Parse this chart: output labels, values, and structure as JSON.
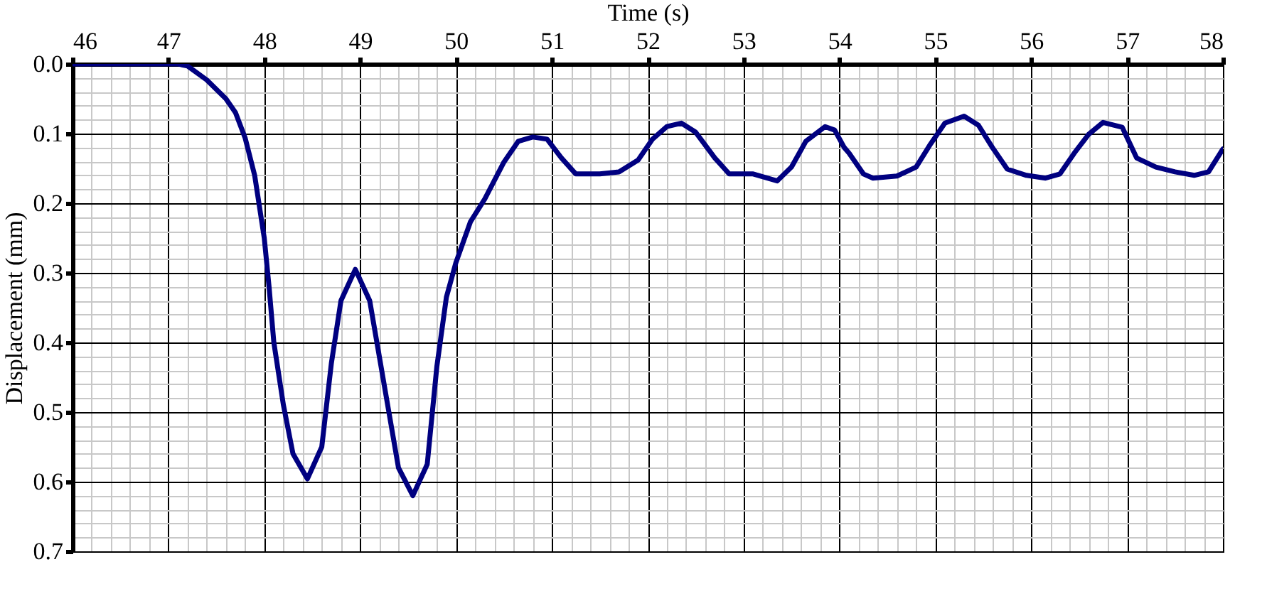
{
  "chart_data": {
    "type": "line",
    "xlabel": "Time (s)",
    "ylabel": "Displacement (mm)",
    "grid": true,
    "marker": "none",
    "line_style": "solid",
    "xlim": [
      46,
      58
    ],
    "ylim": [
      0.7,
      0.0
    ],
    "xticks": [
      46,
      {
        "value": 46.2,
        "label": null
      },
      {
        "value": 46.4,
        "label": null
      },
      {
        "value": 46.6,
        "label": null
      },
      {
        "value": 46.8,
        "label": null
      },
      47,
      {
        "value": 47.2,
        "label": null
      },
      {
        "value": 47.4,
        "label": null
      },
      {
        "value": 47.6,
        "label": null
      },
      {
        "value": 47.8,
        "label": null
      },
      48,
      {
        "value": 48.2,
        "label": null
      },
      {
        "value": 48.4,
        "label": null
      },
      {
        "value": 48.6,
        "label": null
      },
      {
        "value": 48.8,
        "label": null
      },
      49,
      {
        "value": 49.2,
        "label": null
      },
      {
        "value": 49.4,
        "label": null
      },
      {
        "value": 49.6,
        "label": null
      },
      {
        "value": 49.8,
        "label": null
      },
      50,
      {
        "value": 50.2,
        "label": null
      },
      {
        "value": 50.4,
        "label": null
      },
      {
        "value": 50.6,
        "label": null
      },
      {
        "value": 50.8,
        "label": null
      },
      51,
      {
        "value": 51.2,
        "label": null
      },
      {
        "value": 51.4,
        "label": null
      },
      {
        "value": 51.6,
        "label": null
      },
      {
        "value": 51.8,
        "label": null
      },
      52,
      {
        "value": 52.2,
        "label": null
      },
      {
        "value": 52.4,
        "label": null
      },
      {
        "value": 52.6,
        "label": null
      },
      {
        "value": 52.8,
        "label": null
      },
      53,
      {
        "value": 53.2,
        "label": null
      },
      {
        "value": 53.4,
        "label": null
      },
      {
        "value": 53.6,
        "label": null
      },
      {
        "value": 53.8,
        "label": null
      },
      54,
      {
        "value": 54.2,
        "label": null
      },
      {
        "value": 54.4,
        "label": null
      },
      {
        "value": 54.6,
        "label": null
      },
      {
        "value": 54.8,
        "label": null
      },
      55,
      {
        "value": 55.2,
        "label": null
      },
      {
        "value": 55.4,
        "label": null
      },
      {
        "value": 55.6,
        "label": null
      },
      {
        "value": 55.8,
        "label": null
      },
      56,
      {
        "value": 56.2,
        "label": null
      },
      {
        "value": 56.4,
        "label": null
      },
      {
        "value": 56.6,
        "label": null
      },
      {
        "value": 56.8,
        "label": null
      },
      57,
      {
        "value": 57.2,
        "label": null
      },
      {
        "value": 57.4,
        "label": null
      },
      {
        "value": 57.6,
        "label": null
      },
      {
        "value": 57.8,
        "label": null
      },
      58
    ],
    "yticks": [
      {
        "value": 0,
        "label": "0.0"
      },
      {
        "value": 0.02,
        "label": null
      },
      {
        "value": 0.04,
        "label": null
      },
      {
        "value": 0.06,
        "label": null
      },
      {
        "value": 0.08,
        "label": null
      },
      0.1,
      {
        "value": 0.12,
        "label": null
      },
      {
        "value": 0.14,
        "label": null
      },
      {
        "value": 0.16,
        "label": null
      },
      {
        "value": 0.18,
        "label": null
      },
      0.2,
      {
        "value": 0.22,
        "label": null
      },
      {
        "value": 0.24,
        "label": null
      },
      {
        "value": 0.26,
        "label": null
      },
      {
        "value": 0.28,
        "label": null
      },
      0.3,
      {
        "value": 0.32,
        "label": null
      },
      {
        "value": 0.34,
        "label": null
      },
      {
        "value": 0.36,
        "label": null
      },
      {
        "value": 0.38,
        "label": null
      },
      0.4,
      {
        "value": 0.42,
        "label": null
      },
      {
        "value": 0.44,
        "label": null
      },
      {
        "value": 0.46,
        "label": null
      },
      {
        "value": 0.48,
        "label": null
      },
      0.5,
      {
        "value": 0.52,
        "label": null
      },
      {
        "value": 0.54,
        "label": null
      },
      {
        "value": 0.56,
        "label": null
      },
      {
        "value": 0.58,
        "label": null
      },
      0.6,
      {
        "value": 0.62,
        "label": null
      },
      {
        "value": 0.64,
        "label": null
      },
      {
        "value": 0.66,
        "label": null
      },
      {
        "value": 0.68,
        "label": null
      },
      0.7
    ],
    "series": [
      {
        "color": "#000080",
        "x": [
          46,
          46.5,
          47,
          47.1,
          47.2,
          47.4,
          47.6,
          47.7,
          47.8,
          47.9,
          48,
          48.05,
          48.1,
          48.2,
          48.3,
          48.45,
          48.6,
          48.7,
          48.8,
          48.95,
          49.1,
          49.2,
          49.3,
          49.4,
          49.55,
          49.7,
          49.8,
          49.9,
          50,
          50.15,
          50.3,
          50.5,
          50.65,
          50.8,
          50.95,
          51.1,
          51.25,
          51.5,
          51.7,
          51.9,
          52.05,
          52.2,
          52.35,
          52.5,
          52.7,
          52.85,
          53.1,
          53.35,
          53.5,
          53.65,
          53.85,
          53.95,
          54.05,
          54.1,
          54.25,
          54.35,
          54.6,
          54.8,
          54.95,
          55.1,
          55.3,
          55.45,
          55.6,
          55.75,
          55.95,
          56.15,
          56.3,
          56.45,
          56.6,
          56.75,
          56.95,
          57.1,
          57.3,
          57.5,
          57.7,
          57.85,
          58
        ],
        "values": [
          0,
          0,
          0,
          0,
          0.003,
          0.023,
          0.05,
          0.07,
          0.106,
          0.16,
          0.25,
          0.32,
          0.4,
          0.49,
          0.56,
          0.596,
          0.55,
          0.43,
          0.34,
          0.295,
          0.34,
          0.42,
          0.5,
          0.58,
          0.62,
          0.575,
          0.435,
          0.335,
          0.285,
          0.227,
          0.194,
          0.141,
          0.111,
          0.105,
          0.108,
          0.135,
          0.158,
          0.158,
          0.155,
          0.138,
          0.108,
          0.09,
          0.085,
          0.098,
          0.135,
          0.158,
          0.158,
          0.168,
          0.148,
          0.111,
          0.09,
          0.095,
          0.12,
          0.128,
          0.158,
          0.164,
          0.161,
          0.148,
          0.115,
          0.085,
          0.075,
          0.088,
          0.121,
          0.151,
          0.16,
          0.164,
          0.158,
          0.128,
          0.101,
          0.084,
          0.091,
          0.135,
          0.148,
          0.155,
          0.16,
          0.155,
          0.122
        ]
      }
    ]
  }
}
